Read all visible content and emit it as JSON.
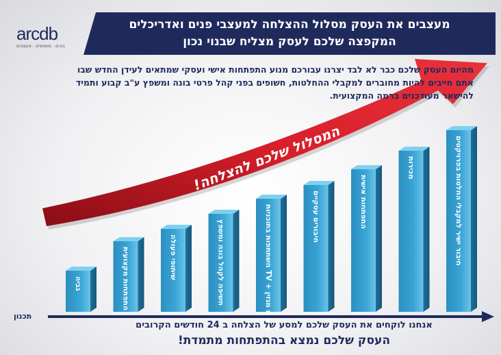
{
  "logo": {
    "name": "arcdb",
    "tagline": "בונים . משפצים . מעצבים"
  },
  "header": {
    "title_line1": "מעצבים את העסק מסלול ההצלחה למעצבי פנים ואדריכלים",
    "title_line2": "המקפצה שלכם לעסק מצליח שבנוי נכון"
  },
  "intro": "מהיום העסק שלכם כבר לא לבד יצרנו עבורכם מנוע התפתחות אישי ועסקי שמתאים לעידן החדש שבו אתם חייבים להיות מחוברים למקבלי ההחלטות, חשופים בפני קהל פרטי בונה ומשפץ ע\"ב קבוע ותמיד להישאר מעודכנים ברמה המקצועית.",
  "arrow_text": "המסלול שלכם להצלחה!",
  "steps": [
    "גביה",
    "התפתחות מקצועית",
    "שיתופי פעולה",
    "חשיפה לקהל בונה ומשפץ",
    "השתתפות בתוכניות TV + כתבות מגזין",
    "חיבורים עסקיים",
    "התפתחות אישית",
    "מכירות",
    "חיבור ישיר למקבלי החלטות בפרויקטים"
  ],
  "axis_label": "תכנון",
  "footer": {
    "line1": "אנחנו לוקחים את העסק שלכם למסע של הצלחה ב 24 חודשים הקרובים",
    "line2": "העסק שלכם נמצא בהתפתחות מתמדת!"
  }
}
